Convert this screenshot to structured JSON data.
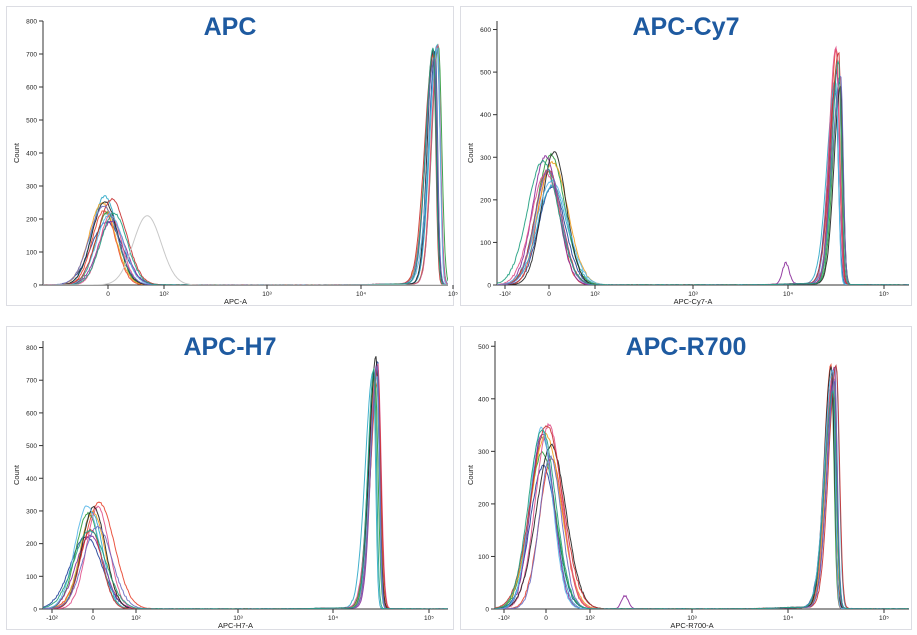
{
  "colors": {
    "title": "#1e5aa0",
    "border": "#dcdde3",
    "axis": "#333333",
    "palette": [
      "#1f3f99",
      "#e8432d",
      "#2fa8c8",
      "#2c9a3a",
      "#f0a020",
      "#8a2a9a",
      "#e0508a",
      "#222222",
      "#5ab8e8",
      "#c83030",
      "#6a6ac0",
      "#20a080"
    ]
  },
  "chart_data": [
    {
      "type": "line",
      "title": "APC",
      "xlabel": "APC-A",
      "ylabel": "Count",
      "x_scale": "biexponential",
      "xlim": [
        -30,
        100000
      ],
      "ylim": [
        0,
        800
      ],
      "yticks": [
        0,
        100,
        200,
        300,
        400,
        500,
        600,
        700,
        800
      ],
      "xtick_labels": [
        "0",
        "10²",
        "10³",
        "10⁴",
        "10⁵"
      ],
      "negative_peak": {
        "height_range": [
          190,
          270
        ],
        "series_count": 12
      },
      "positive_peak": {
        "height_range": [
          690,
          750
        ],
        "x_approx": 65000,
        "series_count": 12
      },
      "extra_features": [
        {
          "kind": "faint-peak",
          "x_approx": 70,
          "height": 210
        }
      ]
    },
    {
      "type": "line",
      "title": "APC-Cy7",
      "xlabel": "APC-Cy7-A",
      "ylabel": "Count",
      "x_scale": "biexponential",
      "xlim": [
        -100,
        100000
      ],
      "ylim": [
        0,
        620
      ],
      "yticks": [
        0,
        100,
        200,
        300,
        400,
        500,
        600
      ],
      "xtick_labels": [
        "-10²",
        "0",
        "10²",
        "10³",
        "10⁴",
        "10⁵"
      ],
      "negative_peak": {
        "height_range": [
          230,
          330
        ],
        "series_count": 12
      },
      "positive_peak": {
        "height_range": [
          450,
          560
        ],
        "x_approx": 33000,
        "series_count": 12
      },
      "extra_features": [
        {
          "kind": "small-peak",
          "x_approx": 9500,
          "height": 50
        }
      ]
    },
    {
      "type": "line",
      "title": "APC-H7",
      "xlabel": "APC-H7-A",
      "ylabel": "Count",
      "x_scale": "biexponential",
      "xlim": [
        -100,
        100000
      ],
      "ylim": [
        0,
        820
      ],
      "yticks": [
        0,
        100,
        200,
        300,
        400,
        500,
        600,
        700,
        800
      ],
      "xtick_labels": [
        "-10²",
        "0",
        "10²",
        "10³",
        "10⁴",
        "10⁵"
      ],
      "negative_peak": {
        "height_range": [
          220,
          330
        ],
        "series_count": 12
      },
      "positive_peak": {
        "height_range": [
          690,
          770
        ],
        "x_approx": 28000,
        "series_count": 12
      },
      "extra_features": []
    },
    {
      "type": "line",
      "title": "APC-R700",
      "xlabel": "APC-R700-A",
      "ylabel": "Count",
      "x_scale": "biexponential",
      "xlim": [
        -100,
        100000
      ],
      "ylim": [
        0,
        510
      ],
      "yticks": [
        0,
        100,
        200,
        300,
        400,
        500
      ],
      "xtick_labels": [
        "-10²",
        "0",
        "10²",
        "10³",
        "10⁴",
        "10⁵"
      ],
      "negative_peak": {
        "height_range": [
          270,
          365
        ],
        "series_count": 12
      },
      "positive_peak": {
        "height_range": [
          400,
          465
        ],
        "x_approx": 30000,
        "series_count": 12
      },
      "extra_features": [
        {
          "kind": "small-peak",
          "x_approx": 220,
          "height": 25
        }
      ]
    }
  ]
}
